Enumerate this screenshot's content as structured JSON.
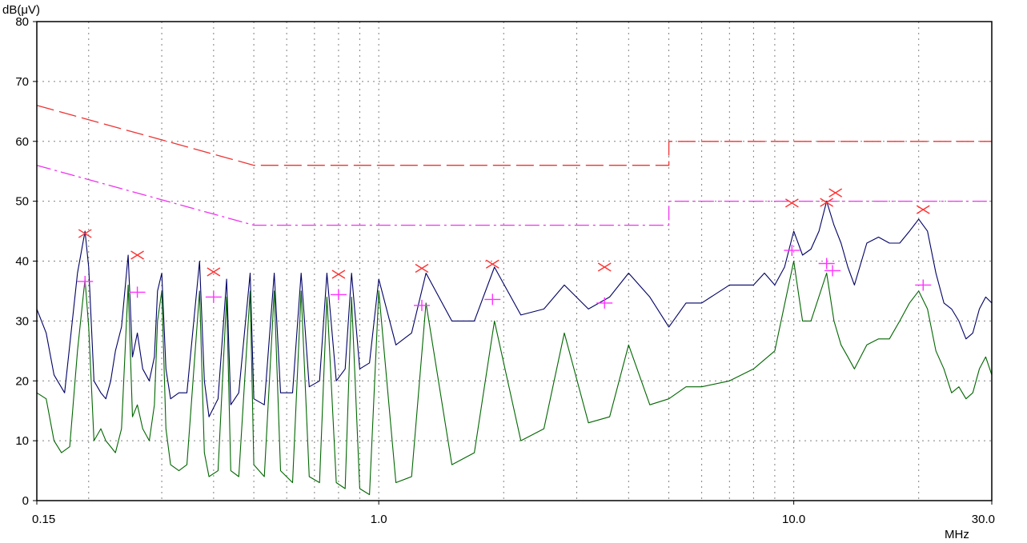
{
  "chart_data": {
    "type": "line",
    "ylabel": "dB(μV)",
    "xlabel": "MHz",
    "x_scale": "log",
    "xlim": [
      0.15,
      30.0
    ],
    "ylim": [
      0,
      80
    ],
    "grid": true,
    "x_tick_labels": [
      "0.15",
      "1.0",
      "10.0",
      "30.0"
    ],
    "x_tick_values": [
      0.15,
      1.0,
      10.0,
      30.0
    ],
    "x_grid_values": [
      0.2,
      0.3,
      0.4,
      0.5,
      0.6,
      0.7,
      0.8,
      0.9,
      1.0,
      2,
      3,
      4,
      5,
      6,
      7,
      8,
      9,
      10,
      20
    ],
    "y_tick_labels": [
      "0",
      "10",
      "20",
      "30",
      "40",
      "50",
      "60",
      "70",
      "80"
    ],
    "y_tick_values": [
      0,
      10,
      20,
      30,
      40,
      50,
      60,
      70,
      80
    ],
    "colors": {
      "peak_trace": "#000066",
      "average_trace": "#006600",
      "qp_limit": "#ee3333",
      "avg_limit": "#ee33ee",
      "qp_marker": "#ff3333",
      "avg_marker": "#ff33ff",
      "grid": "#808080",
      "axes": "#000000"
    },
    "limit_lines": [
      {
        "style": "dashed",
        "color": "#ee3333",
        "points": [
          [
            0.15,
            66
          ],
          [
            0.5,
            56
          ],
          [
            5.0,
            56
          ],
          [
            5.0,
            60
          ],
          [
            30.0,
            60
          ]
        ]
      },
      {
        "style": "dash-dot",
        "color": "#ee33ee",
        "points": [
          [
            0.15,
            56
          ],
          [
            0.5,
            46
          ],
          [
            5.0,
            46
          ],
          [
            5.0,
            50
          ],
          [
            30.0,
            50
          ]
        ]
      }
    ],
    "series": [
      {
        "color": "#000066",
        "points": [
          [
            0.15,
            32
          ],
          [
            0.158,
            28
          ],
          [
            0.165,
            21
          ],
          [
            0.175,
            18
          ],
          [
            0.188,
            38
          ],
          [
            0.196,
            45
          ],
          [
            0.2,
            39
          ],
          [
            0.206,
            20
          ],
          [
            0.214,
            18
          ],
          [
            0.22,
            17
          ],
          [
            0.226,
            20
          ],
          [
            0.232,
            25
          ],
          [
            0.24,
            29
          ],
          [
            0.249,
            41
          ],
          [
            0.255,
            24
          ],
          [
            0.262,
            28
          ],
          [
            0.27,
            22
          ],
          [
            0.28,
            20
          ],
          [
            0.288,
            24
          ],
          [
            0.293,
            35
          ],
          [
            0.3,
            38
          ],
          [
            0.307,
            22
          ],
          [
            0.315,
            17
          ],
          [
            0.33,
            18
          ],
          [
            0.345,
            18
          ],
          [
            0.37,
            40
          ],
          [
            0.38,
            20
          ],
          [
            0.39,
            14
          ],
          [
            0.41,
            17
          ],
          [
            0.43,
            37
          ],
          [
            0.44,
            16
          ],
          [
            0.46,
            18
          ],
          [
            0.49,
            38
          ],
          [
            0.5,
            17
          ],
          [
            0.53,
            16
          ],
          [
            0.56,
            38
          ],
          [
            0.58,
            18
          ],
          [
            0.62,
            18
          ],
          [
            0.65,
            38
          ],
          [
            0.68,
            19
          ],
          [
            0.72,
            20
          ],
          [
            0.75,
            38
          ],
          [
            0.79,
            20
          ],
          [
            0.83,
            22
          ],
          [
            0.86,
            38
          ],
          [
            0.9,
            22
          ],
          [
            0.95,
            23
          ],
          [
            1.0,
            37
          ],
          [
            1.1,
            26
          ],
          [
            1.2,
            28
          ],
          [
            1.3,
            38
          ],
          [
            1.5,
            30
          ],
          [
            1.7,
            30
          ],
          [
            1.9,
            39
          ],
          [
            2.2,
            31
          ],
          [
            2.5,
            32
          ],
          [
            2.8,
            36
          ],
          [
            3.2,
            32
          ],
          [
            3.6,
            34
          ],
          [
            4.0,
            38
          ],
          [
            4.5,
            34
          ],
          [
            5.0,
            29
          ],
          [
            5.5,
            33
          ],
          [
            6.0,
            33
          ],
          [
            7.0,
            36
          ],
          [
            8.0,
            36
          ],
          [
            8.5,
            38
          ],
          [
            9.0,
            36
          ],
          [
            9.5,
            39
          ],
          [
            10.0,
            45
          ],
          [
            10.5,
            41
          ],
          [
            11.0,
            42
          ],
          [
            11.5,
            45
          ],
          [
            12.0,
            50
          ],
          [
            12.5,
            46
          ],
          [
            13.0,
            43
          ],
          [
            13.5,
            39
          ],
          [
            14.0,
            36
          ],
          [
            15.0,
            43
          ],
          [
            16.0,
            44
          ],
          [
            17.0,
            43
          ],
          [
            18.0,
            43
          ],
          [
            19.0,
            45
          ],
          [
            20.0,
            47
          ],
          [
            21.0,
            45
          ],
          [
            22.0,
            38
          ],
          [
            23.0,
            33
          ],
          [
            24.0,
            32
          ],
          [
            25.0,
            30
          ],
          [
            26.0,
            27
          ],
          [
            27.0,
            28
          ],
          [
            28.0,
            32
          ],
          [
            29.0,
            34
          ],
          [
            30.0,
            33
          ]
        ]
      },
      {
        "color": "#006600",
        "points": [
          [
            0.15,
            18
          ],
          [
            0.158,
            17
          ],
          [
            0.165,
            10
          ],
          [
            0.172,
            8
          ],
          [
            0.18,
            9
          ],
          [
            0.188,
            25
          ],
          [
            0.196,
            37
          ],
          [
            0.2,
            29
          ],
          [
            0.206,
            10
          ],
          [
            0.214,
            12
          ],
          [
            0.22,
            10
          ],
          [
            0.226,
            9
          ],
          [
            0.232,
            8
          ],
          [
            0.24,
            12
          ],
          [
            0.249,
            36
          ],
          [
            0.255,
            14
          ],
          [
            0.262,
            16
          ],
          [
            0.27,
            12
          ],
          [
            0.28,
            10
          ],
          [
            0.288,
            16
          ],
          [
            0.293,
            30
          ],
          [
            0.3,
            35
          ],
          [
            0.307,
            12
          ],
          [
            0.315,
            6
          ],
          [
            0.33,
            5
          ],
          [
            0.345,
            6
          ],
          [
            0.37,
            35
          ],
          [
            0.38,
            8
          ],
          [
            0.39,
            4
          ],
          [
            0.41,
            5
          ],
          [
            0.43,
            34
          ],
          [
            0.44,
            5
          ],
          [
            0.46,
            4
          ],
          [
            0.49,
            35
          ],
          [
            0.5,
            6
          ],
          [
            0.53,
            4
          ],
          [
            0.56,
            35
          ],
          [
            0.58,
            5
          ],
          [
            0.62,
            3
          ],
          [
            0.65,
            35
          ],
          [
            0.68,
            4
          ],
          [
            0.72,
            3
          ],
          [
            0.75,
            34
          ],
          [
            0.79,
            3
          ],
          [
            0.83,
            2
          ],
          [
            0.86,
            34
          ],
          [
            0.9,
            2
          ],
          [
            0.95,
            1
          ],
          [
            1.0,
            35
          ],
          [
            1.1,
            3
          ],
          [
            1.2,
            4
          ],
          [
            1.3,
            33
          ],
          [
            1.5,
            6
          ],
          [
            1.7,
            8
          ],
          [
            1.9,
            30
          ],
          [
            2.2,
            10
          ],
          [
            2.5,
            12
          ],
          [
            2.8,
            28
          ],
          [
            3.2,
            13
          ],
          [
            3.6,
            14
          ],
          [
            4.0,
            26
          ],
          [
            4.5,
            16
          ],
          [
            5.0,
            17
          ],
          [
            5.5,
            19
          ],
          [
            6.0,
            19
          ],
          [
            7.0,
            20
          ],
          [
            8.0,
            22
          ],
          [
            9.0,
            25
          ],
          [
            10.0,
            40
          ],
          [
            10.5,
            30
          ],
          [
            11.0,
            30
          ],
          [
            12.0,
            38
          ],
          [
            12.5,
            30
          ],
          [
            13.0,
            26
          ],
          [
            13.5,
            24
          ],
          [
            14.0,
            22
          ],
          [
            15.0,
            26
          ],
          [
            16.0,
            27
          ],
          [
            17.0,
            27
          ],
          [
            18.0,
            30
          ],
          [
            19.0,
            33
          ],
          [
            20.0,
            35
          ],
          [
            21.0,
            32
          ],
          [
            22.0,
            25
          ],
          [
            23.0,
            22
          ],
          [
            24.0,
            18
          ],
          [
            25.0,
            19
          ],
          [
            26.0,
            17
          ],
          [
            27.0,
            18
          ],
          [
            28.0,
            22
          ],
          [
            29.0,
            24
          ],
          [
            30.0,
            21
          ]
        ]
      }
    ],
    "qp_markers": [
      [
        0.196,
        44.6
      ],
      [
        0.262,
        41.0
      ],
      [
        0.4,
        38.2
      ],
      [
        0.8,
        37.8
      ],
      [
        1.27,
        38.8
      ],
      [
        1.88,
        39.5
      ],
      [
        3.5,
        39.0
      ],
      [
        9.9,
        49.7
      ],
      [
        12.0,
        49.8
      ],
      [
        12.6,
        51.4
      ],
      [
        20.5,
        48.6
      ]
    ],
    "avg_markers": [
      [
        0.196,
        36.6
      ],
      [
        0.262,
        34.8
      ],
      [
        0.4,
        34.0
      ],
      [
        0.8,
        34.4
      ],
      [
        1.27,
        32.6
      ],
      [
        1.88,
        33.6
      ],
      [
        3.5,
        33.0
      ],
      [
        9.9,
        41.8
      ],
      [
        12.0,
        39.6
      ],
      [
        12.4,
        38.4
      ],
      [
        20.5,
        36.0
      ]
    ]
  }
}
